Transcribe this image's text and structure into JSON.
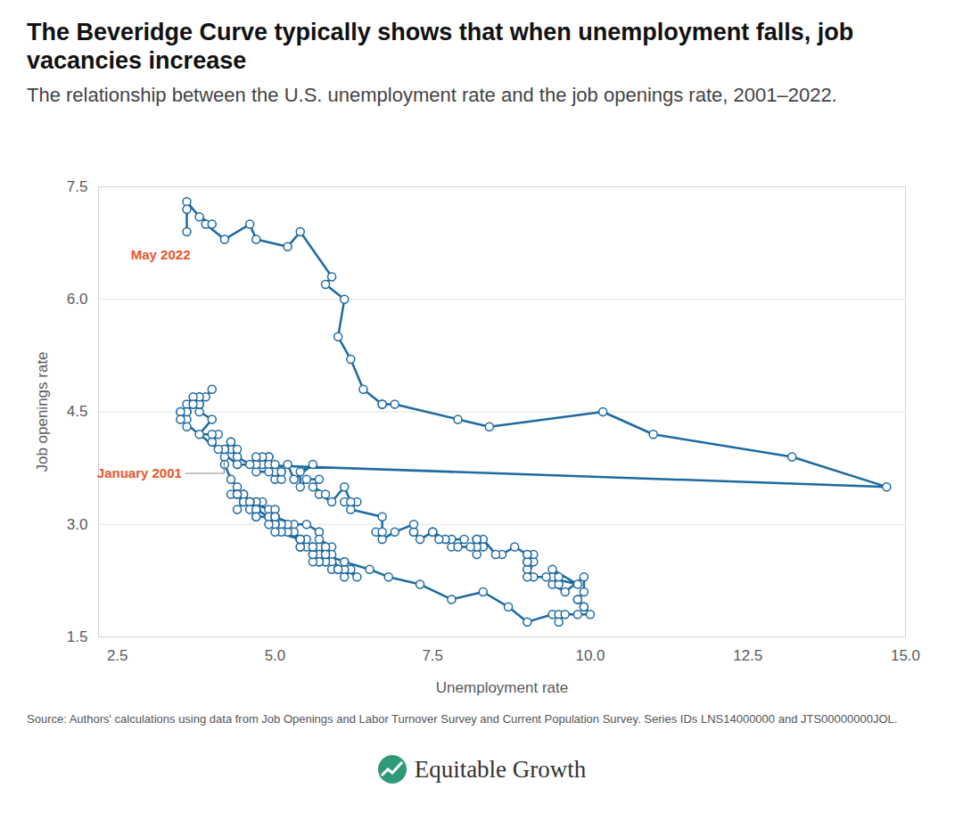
{
  "chart_data": {
    "type": "line",
    "title": "The Beveridge Curve typically shows that when unemployment falls, job vacancies increase",
    "subtitle": "The relationship between the U.S. unemployment rate and the job openings rate, 2001–2022.",
    "x_label": "Unemployment rate",
    "y_label": "Job openings rate",
    "source": "Source: Authors' calculations using data from Job Openings and Labor Turnover Survey and Current Population Survey. Series IDs LNS14000000 and JTS00000000JOL.",
    "branding": "Equitable Growth",
    "color": "#1d6aa1",
    "marker": "circle",
    "grid": true,
    "xlim": [
      2.2,
      15
    ],
    "xticks": [
      2.5,
      {
        "value": 5,
        "label": "5.0"
      },
      7.5,
      {
        "value": 10,
        "label": "10.0"
      },
      12.5,
      {
        "value": 15,
        "label": "15.0"
      }
    ],
    "ylim": [
      1.5,
      7.5
    ],
    "yticks": [
      1.5,
      {
        "value": 3,
        "label": "3.0"
      },
      4.5,
      {
        "value": 6,
        "label": "6.0"
      },
      7.5
    ],
    "annotations": [
      {
        "text": "May 2022",
        "x": 3.6,
        "y": 6.9,
        "color": "#e8562a"
      },
      {
        "text": "January 2001",
        "x": 4.2,
        "y": 3.9,
        "color": "#e8562a"
      }
    ],
    "x": [
      4.2,
      4.2,
      4.3,
      4.4,
      4.3,
      4.5,
      4.6,
      4.9,
      5.0,
      5.3,
      5.5,
      5.7,
      5.7,
      5.7,
      5.7,
      5.9,
      5.8,
      5.8,
      5.8,
      5.7,
      5.7,
      5.7,
      5.9,
      6.0,
      5.8,
      5.9,
      5.9,
      6.0,
      6.1,
      6.3,
      6.2,
      6.1,
      6.1,
      6.0,
      5.8,
      5.7,
      5.7,
      5.6,
      5.8,
      5.6,
      5.6,
      5.6,
      5.5,
      5.4,
      5.4,
      5.5,
      5.4,
      5.4,
      5.3,
      5.4,
      5.2,
      5.2,
      5.1,
      5.0,
      5.0,
      4.9,
      5.0,
      5.0,
      5.0,
      4.9,
      4.7,
      4.8,
      4.7,
      4.7,
      4.6,
      4.6,
      4.7,
      4.7,
      4.5,
      4.4,
      4.5,
      4.4,
      4.6,
      4.5,
      4.4,
      4.5,
      4.4,
      4.6,
      4.7,
      4.6,
      4.7,
      4.7,
      4.7,
      5.0,
      5.0,
      4.9,
      5.1,
      5.0,
      5.4,
      5.6,
      5.8,
      6.1,
      6.1,
      6.5,
      6.8,
      7.3,
      7.8,
      8.3,
      8.7,
      9.0,
      9.4,
      9.5,
      9.5,
      9.6,
      9.8,
      10.0,
      9.9,
      9.9,
      9.8,
      9.8,
      9.9,
      9.9,
      9.6,
      9.4,
      9.4,
      9.5,
      9.5,
      9.4,
      9.8,
      9.3,
      9.1,
      9.0,
      9.0,
      9.1,
      9.0,
      9.1,
      9.0,
      9.0,
      9.0,
      8.8,
      8.6,
      8.5,
      8.3,
      8.3,
      8.2,
      8.2,
      8.2,
      8.2,
      8.2,
      8.1,
      7.8,
      7.8,
      7.7,
      7.9,
      8.0,
      7.7,
      7.5,
      7.6,
      7.5,
      7.5,
      7.3,
      7.2,
      7.2,
      7.2,
      6.9,
      6.7,
      6.6,
      6.7,
      6.7,
      6.2,
      6.3,
      6.1,
      6.2,
      6.1,
      5.9,
      5.7,
      5.8,
      5.6,
      5.7,
      5.5,
      5.4,
      5.4,
      5.6,
      5.3,
      5.2,
      5.1,
      5.0,
      5.0,
      5.1,
      5.0,
      4.8,
      4.9,
      5.0,
      5.1,
      4.8,
      4.9,
      4.8,
      4.9,
      5.0,
      4.9,
      4.7,
      4.7,
      4.7,
      4.6,
      4.4,
      4.4,
      4.4,
      4.3,
      4.3,
      4.4,
      4.3,
      4.2,
      4.2,
      4.1,
      4.0,
      4.1,
      4.0,
      4.0,
      3.8,
      4.0,
      3.8,
      3.8,
      3.7,
      3.8,
      3.8,
      3.9,
      4.0,
      3.8,
      3.8,
      3.7,
      3.6,
      3.6,
      3.7,
      3.6,
      3.5,
      3.6,
      3.6,
      3.6,
      3.5,
      3.5,
      4.4,
      14.7,
      13.2,
      11.0,
      10.2,
      8.4,
      7.9,
      6.9,
      6.7,
      6.7,
      6.4,
      6.2,
      6.0,
      6.1,
      5.8,
      5.9,
      5.4,
      5.2,
      4.7,
      4.6,
      4.2,
      3.9,
      4.0,
      3.8,
      3.6,
      3.6,
      3.6
    ],
    "values": [
      3.9,
      3.8,
      3.6,
      3.5,
      3.4,
      3.4,
      3.3,
      3.2,
      3.1,
      3.0,
      3.0,
      2.9,
      2.9,
      2.7,
      2.8,
      2.7,
      2.7,
      2.6,
      2.7,
      2.6,
      2.6,
      2.6,
      2.6,
      2.4,
      2.5,
      2.5,
      2.4,
      2.4,
      2.4,
      2.3,
      2.4,
      2.3,
      2.4,
      2.4,
      2.5,
      2.5,
      2.5,
      2.5,
      2.6,
      2.6,
      2.6,
      2.7,
      2.7,
      2.7,
      2.7,
      2.8,
      2.8,
      2.8,
      2.9,
      2.8,
      2.9,
      3.0,
      3.0,
      3.0,
      3.0,
      3.1,
      3.0,
      3.1,
      3.2,
      3.1,
      3.2,
      3.3,
      3.3,
      3.3,
      3.3,
      3.3,
      3.2,
      3.2,
      3.3,
      3.2,
      3.3,
      3.4,
      3.3,
      3.4,
      3.4,
      3.3,
      3.4,
      3.3,
      3.2,
      3.2,
      3.2,
      3.1,
      3.1,
      3.1,
      3.1,
      3.0,
      2.9,
      2.9,
      2.8,
      2.7,
      2.6,
      2.5,
      2.5,
      2.4,
      2.3,
      2.2,
      2.0,
      2.1,
      1.9,
      1.7,
      1.8,
      1.8,
      1.7,
      1.8,
      1.8,
      1.8,
      1.9,
      1.9,
      2.0,
      2.0,
      2.1,
      2.3,
      2.1,
      2.2,
      2.3,
      2.2,
      2.3,
      2.4,
      2.2,
      2.3,
      2.3,
      2.4,
      2.3,
      2.5,
      2.5,
      2.6,
      2.6,
      2.5,
      2.6,
      2.7,
      2.6,
      2.6,
      2.8,
      2.7,
      2.8,
      2.6,
      2.7,
      2.8,
      2.8,
      2.7,
      2.7,
      2.8,
      2.8,
      2.7,
      2.8,
      2.8,
      2.9,
      2.8,
      2.9,
      2.9,
      2.8,
      2.9,
      2.9,
      3.0,
      2.9,
      2.8,
      2.9,
      2.9,
      3.1,
      3.2,
      3.3,
      3.3,
      3.3,
      3.5,
      3.3,
      3.4,
      3.4,
      3.5,
      3.6,
      3.6,
      3.5,
      3.7,
      3.8,
      3.6,
      3.8,
      3.7,
      3.6,
      3.7,
      3.6,
      3.7,
      3.8,
      3.9,
      3.7,
      3.7,
      3.8,
      3.9,
      3.9,
      3.8,
      3.8,
      3.7,
      3.7,
      3.8,
      3.9,
      3.8,
      3.9,
      3.9,
      3.8,
      4.1,
      4.0,
      4.0,
      4.1,
      4.0,
      4.0,
      4.0,
      4.1,
      4.2,
      4.1,
      4.2,
      4.2,
      4.4,
      4.5,
      4.6,
      4.6,
      4.7,
      4.6,
      4.7,
      4.8,
      4.6,
      4.7,
      4.7,
      4.6,
      4.5,
      4.6,
      4.5,
      4.5,
      4.4,
      4.5,
      4.3,
      4.5,
      4.4,
      3.8,
      3.5,
      3.9,
      4.2,
      4.5,
      4.3,
      4.4,
      4.6,
      4.6,
      4.6,
      4.8,
      5.2,
      5.5,
      6.0,
      6.2,
      6.3,
      6.9,
      6.7,
      6.8,
      7.0,
      6.8,
      7.0,
      7.0,
      7.1,
      7.3,
      7.2,
      6.9
    ]
  }
}
